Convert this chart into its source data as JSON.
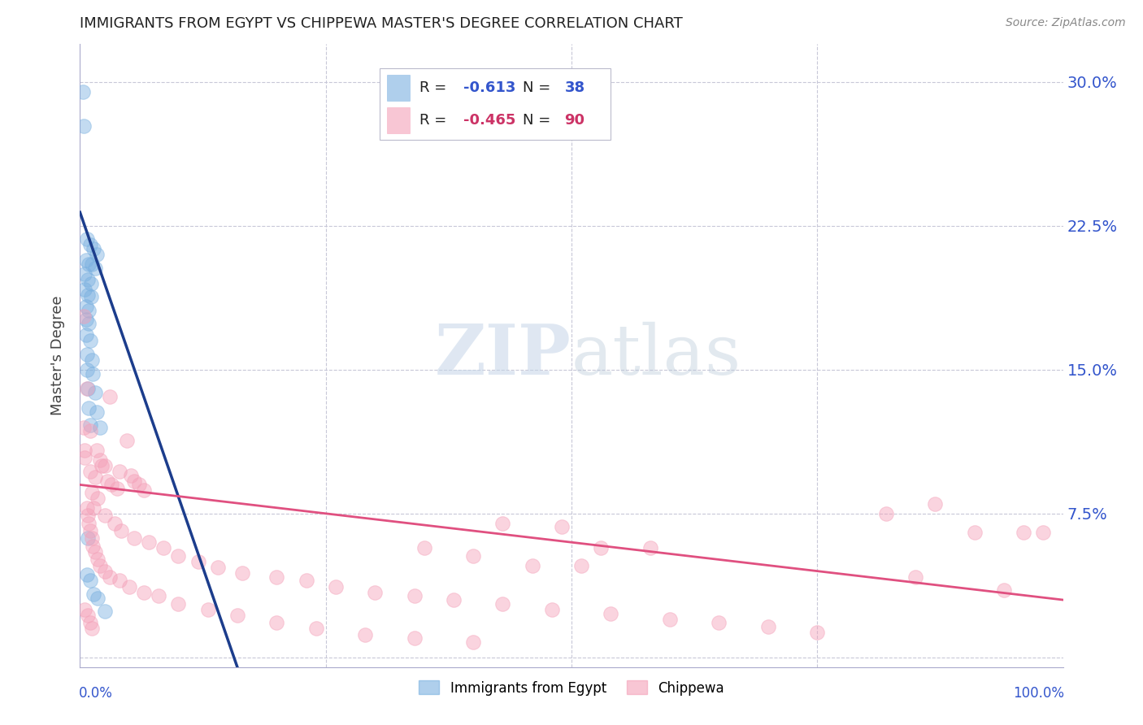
{
  "title": "IMMIGRANTS FROM EGYPT VS CHIPPEWA MASTER'S DEGREE CORRELATION CHART",
  "source": "Source: ZipAtlas.com",
  "ylabel": "Master's Degree",
  "ytick_values": [
    0,
    0.075,
    0.15,
    0.225,
    0.3
  ],
  "xlim": [
    0,
    1.0
  ],
  "ylim": [
    -0.005,
    0.32
  ],
  "watermark_zip": "ZIP",
  "watermark_atlas": "atlas",
  "blue_color": "#7ab0e0",
  "pink_color": "#f4a0b8",
  "line_blue_color": "#1c3d8c",
  "line_pink_color": "#e05080",
  "legend_label_blue": "Immigrants from Egypt",
  "legend_label_pink": "Chippewa",
  "legend_R_blue": "-0.613",
  "legend_N_blue": "38",
  "legend_R_pink": "-0.465",
  "legend_N_pink": "90",
  "blue_points": [
    [
      0.003,
      0.295
    ],
    [
      0.004,
      0.277
    ],
    [
      0.007,
      0.218
    ],
    [
      0.01,
      0.215
    ],
    [
      0.014,
      0.213
    ],
    [
      0.017,
      0.21
    ],
    [
      0.006,
      0.207
    ],
    [
      0.009,
      0.205
    ],
    [
      0.012,
      0.205
    ],
    [
      0.015,
      0.203
    ],
    [
      0.005,
      0.2
    ],
    [
      0.008,
      0.197
    ],
    [
      0.011,
      0.195
    ],
    [
      0.005,
      0.192
    ],
    [
      0.008,
      0.189
    ],
    [
      0.011,
      0.188
    ],
    [
      0.006,
      0.183
    ],
    [
      0.009,
      0.181
    ],
    [
      0.006,
      0.176
    ],
    [
      0.009,
      0.174
    ],
    [
      0.006,
      0.168
    ],
    [
      0.01,
      0.165
    ],
    [
      0.007,
      0.158
    ],
    [
      0.012,
      0.155
    ],
    [
      0.007,
      0.15
    ],
    [
      0.013,
      0.148
    ],
    [
      0.008,
      0.14
    ],
    [
      0.015,
      0.138
    ],
    [
      0.009,
      0.13
    ],
    [
      0.017,
      0.128
    ],
    [
      0.01,
      0.121
    ],
    [
      0.02,
      0.12
    ],
    [
      0.007,
      0.043
    ],
    [
      0.01,
      0.04
    ],
    [
      0.014,
      0.033
    ],
    [
      0.018,
      0.031
    ],
    [
      0.025,
      0.024
    ],
    [
      0.008,
      0.062
    ]
  ],
  "pink_points": [
    [
      0.004,
      0.178
    ],
    [
      0.007,
      0.14
    ],
    [
      0.03,
      0.136
    ],
    [
      0.004,
      0.12
    ],
    [
      0.01,
      0.118
    ],
    [
      0.048,
      0.113
    ],
    [
      0.005,
      0.108
    ],
    [
      0.017,
      0.108
    ],
    [
      0.005,
      0.104
    ],
    [
      0.02,
      0.103
    ],
    [
      0.022,
      0.1
    ],
    [
      0.025,
      0.1
    ],
    [
      0.01,
      0.097
    ],
    [
      0.04,
      0.097
    ],
    [
      0.015,
      0.094
    ],
    [
      0.052,
      0.095
    ],
    [
      0.028,
      0.092
    ],
    [
      0.055,
      0.092
    ],
    [
      0.032,
      0.09
    ],
    [
      0.06,
      0.09
    ],
    [
      0.038,
      0.088
    ],
    [
      0.012,
      0.086
    ],
    [
      0.065,
      0.087
    ],
    [
      0.018,
      0.083
    ],
    [
      0.007,
      0.078
    ],
    [
      0.014,
      0.078
    ],
    [
      0.008,
      0.074
    ],
    [
      0.025,
      0.074
    ],
    [
      0.009,
      0.07
    ],
    [
      0.035,
      0.07
    ],
    [
      0.01,
      0.066
    ],
    [
      0.042,
      0.066
    ],
    [
      0.012,
      0.062
    ],
    [
      0.055,
      0.062
    ],
    [
      0.013,
      0.058
    ],
    [
      0.07,
      0.06
    ],
    [
      0.015,
      0.055
    ],
    [
      0.085,
      0.057
    ],
    [
      0.018,
      0.051
    ],
    [
      0.1,
      0.053
    ],
    [
      0.02,
      0.048
    ],
    [
      0.12,
      0.05
    ],
    [
      0.025,
      0.045
    ],
    [
      0.14,
      0.047
    ],
    [
      0.03,
      0.042
    ],
    [
      0.165,
      0.044
    ],
    [
      0.04,
      0.04
    ],
    [
      0.2,
      0.042
    ],
    [
      0.05,
      0.037
    ],
    [
      0.23,
      0.04
    ],
    [
      0.065,
      0.034
    ],
    [
      0.26,
      0.037
    ],
    [
      0.08,
      0.032
    ],
    [
      0.3,
      0.034
    ],
    [
      0.1,
      0.028
    ],
    [
      0.34,
      0.032
    ],
    [
      0.13,
      0.025
    ],
    [
      0.38,
      0.03
    ],
    [
      0.16,
      0.022
    ],
    [
      0.43,
      0.028
    ],
    [
      0.2,
      0.018
    ],
    [
      0.48,
      0.025
    ],
    [
      0.24,
      0.015
    ],
    [
      0.54,
      0.023
    ],
    [
      0.29,
      0.012
    ],
    [
      0.6,
      0.02
    ],
    [
      0.34,
      0.01
    ],
    [
      0.65,
      0.018
    ],
    [
      0.4,
      0.008
    ],
    [
      0.7,
      0.016
    ],
    [
      0.75,
      0.013
    ],
    [
      0.82,
      0.075
    ],
    [
      0.87,
      0.08
    ],
    [
      0.91,
      0.065
    ],
    [
      0.96,
      0.065
    ],
    [
      0.85,
      0.042
    ],
    [
      0.94,
      0.035
    ],
    [
      0.98,
      0.065
    ],
    [
      0.53,
      0.057
    ],
    [
      0.58,
      0.057
    ],
    [
      0.46,
      0.048
    ],
    [
      0.51,
      0.048
    ],
    [
      0.43,
      0.07
    ],
    [
      0.49,
      0.068
    ],
    [
      0.35,
      0.057
    ],
    [
      0.4,
      0.053
    ],
    [
      0.005,
      0.025
    ],
    [
      0.008,
      0.022
    ],
    [
      0.01,
      0.018
    ],
    [
      0.012,
      0.015
    ]
  ],
  "blue_line": {
    "x0": 0.0,
    "y0": 0.232,
    "x1": 0.16,
    "y1": -0.005
  },
  "pink_line": {
    "x0": 0.0,
    "y0": 0.09,
    "x1": 1.0,
    "y1": 0.03
  }
}
